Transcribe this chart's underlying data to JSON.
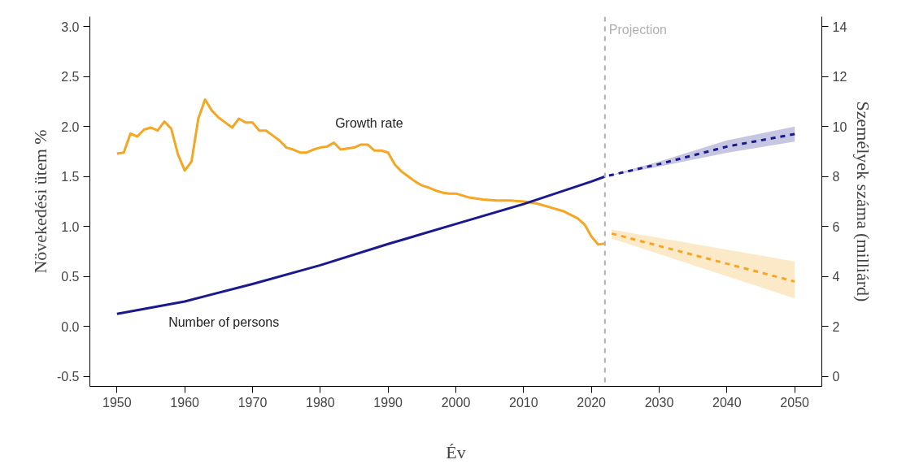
{
  "chart_data": {
    "type": "line",
    "xlabel": "Év",
    "ylabel": "Növekedési ütem %",
    "y2label": "Személyek száma (milliárd)",
    "xlim": [
      1946,
      2054
    ],
    "xticks": [
      1950,
      1960,
      1970,
      1980,
      1990,
      2000,
      2010,
      2020,
      2030,
      2040,
      2050
    ],
    "ylim": [
      -0.6,
      3.1
    ],
    "yticks": [
      -0.5,
      {
        "value": 0,
        "label": "0.0"
      },
      0.5,
      {
        "value": 1,
        "label": "1.0"
      },
      1.5,
      {
        "value": 2,
        "label": "2.0"
      },
      2.5,
      {
        "value": 3,
        "label": "3.0"
      }
    ],
    "y2lim": [
      -0.4,
      14.4
    ],
    "y2ticks": [
      0,
      2,
      4,
      6,
      8,
      10,
      12,
      14
    ],
    "grid": false,
    "ref_lines": [
      {
        "axis": "x",
        "value": 2022,
        "label": "Projection",
        "color": "#b0b0b0",
        "line_style": "dashed"
      }
    ],
    "series": [
      {
        "name": "Growth rate",
        "color": "#f5a623",
        "line_style": "solid",
        "x": [
          1950,
          1951,
          1952,
          1953,
          1954,
          1955,
          1956,
          1957,
          1958,
          1959,
          1960,
          1961,
          1962,
          1963,
          1964,
          1965,
          1966,
          1967,
          1968,
          1969,
          1970,
          1971,
          1972,
          1973,
          1974,
          1975,
          1976,
          1977,
          1978,
          1979,
          1980,
          1981,
          1982,
          1983,
          1984,
          1985,
          1986,
          1987,
          1988,
          1989,
          1990,
          1991,
          1992,
          1993,
          1994,
          1995,
          1996,
          1997,
          1998,
          1999,
          2000,
          2002,
          2004,
          2006,
          2008,
          2010,
          2012,
          2014,
          2016,
          2018,
          2019,
          2020,
          2021,
          2022
        ],
        "values": [
          1.73,
          1.74,
          1.93,
          1.9,
          1.97,
          1.99,
          1.96,
          2.05,
          1.98,
          1.72,
          1.56,
          1.65,
          2.08,
          2.27,
          2.16,
          2.09,
          2.04,
          1.99,
          2.08,
          2.04,
          2.04,
          1.96,
          1.96,
          1.91,
          1.86,
          1.79,
          1.77,
          1.74,
          1.74,
          1.77,
          1.79,
          1.8,
          1.84,
          1.77,
          1.78,
          1.79,
          1.82,
          1.82,
          1.76,
          1.76,
          1.74,
          1.62,
          1.55,
          1.5,
          1.45,
          1.41,
          1.39,
          1.36,
          1.34,
          1.33,
          1.33,
          1.29,
          1.27,
          1.26,
          1.26,
          1.25,
          1.23,
          1.19,
          1.15,
          1.08,
          1.02,
          0.9,
          0.82,
          0.83
        ]
      },
      {
        "color": "#f5a623",
        "line_style": "dashed",
        "x": [
          2023,
          2050
        ],
        "values": [
          0.93,
          0.45
        ],
        "lower": [
          0.88,
          0.28
        ],
        "upper": [
          0.97,
          0.65
        ]
      },
      {
        "name": "Number of persons",
        "color": "#1a1a8c",
        "line_style": "solid",
        "axis": "y2",
        "x": [
          1950,
          1960,
          1970,
          1980,
          1990,
          2000,
          2010,
          2020,
          2022
        ],
        "values": [
          2.5,
          3.0,
          3.7,
          4.45,
          5.3,
          6.1,
          6.9,
          7.8,
          8.0
        ]
      },
      {
        "color": "#1a1a8c",
        "line_style": "dashed",
        "axis": "y2",
        "x": [
          2022,
          2030,
          2040,
          2050
        ],
        "values": [
          8.0,
          8.5,
          9.2,
          9.7
        ],
        "lower": [
          8.0,
          8.4,
          8.95,
          9.4
        ],
        "upper": [
          8.0,
          8.6,
          9.45,
          10.0
        ]
      }
    ]
  }
}
